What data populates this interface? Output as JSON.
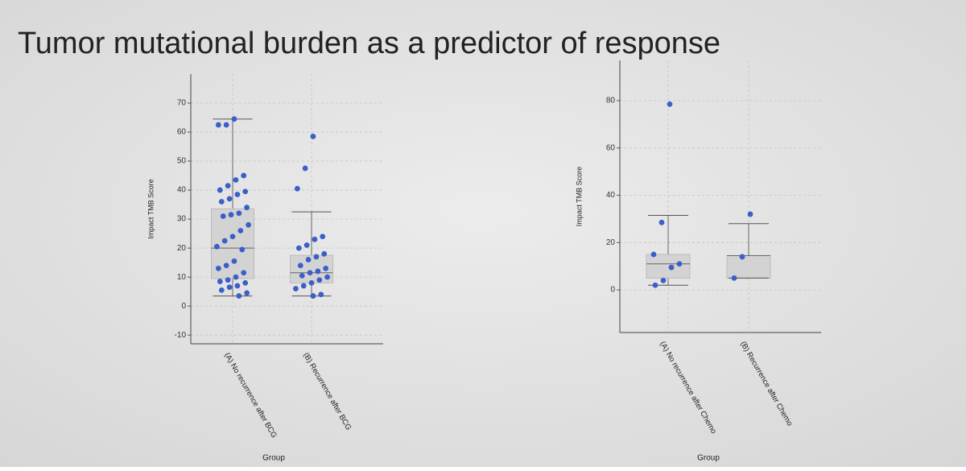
{
  "title": "Tumor mutational burden as a predictor of response",
  "chart_data": [
    {
      "type": "box",
      "y_label": "Impact TMB Score",
      "x_label": "Group",
      "categories": [
        "(A) No recurrence after BCG",
        "(B) Recurrence after BCG"
      ],
      "box_color": "#d3d3d3",
      "point_color": "#3b5fc9",
      "grid": true,
      "ylim": [
        -13,
        80
      ],
      "yticks": [
        -10,
        0,
        10,
        20,
        30,
        40,
        50,
        60,
        70
      ],
      "boxes": [
        {
          "whislo": 3.5,
          "q1": 9.5,
          "med": 20,
          "q3": 33.5,
          "whishi": 64.5,
          "points": [
            64.5,
            62.5,
            62.5,
            45,
            43.5,
            41.5,
            40,
            39.5,
            38.5,
            37,
            36,
            34,
            32,
            31.5,
            31,
            28,
            26,
            24,
            22.5,
            20.5,
            19.5,
            15.5,
            14,
            13,
            11.5,
            10,
            9,
            8.5,
            8,
            7,
            6.5,
            5.5,
            4.5,
            3.5
          ]
        },
        {
          "whislo": 3.5,
          "q1": 8,
          "med": 11.5,
          "q3": 17.5,
          "whishi": 32.5,
          "points": [
            58.5,
            47.5,
            40.5,
            24,
            23,
            21,
            20,
            18,
            17,
            16,
            14,
            13,
            12,
            11.5,
            10.5,
            10,
            9,
            8,
            7,
            6,
            4,
            3.5
          ]
        }
      ]
    },
    {
      "type": "box",
      "y_label": "Impact TMB Score",
      "x_label": "Group",
      "categories": [
        "(A) No recurrence after Chemo",
        "(B) Recurrence after Chemo"
      ],
      "box_color": "#d3d3d3",
      "point_color": "#3b5fc9",
      "grid": true,
      "ylim": [
        -18,
        97
      ],
      "yticks": [
        0,
        20,
        40,
        60,
        80
      ],
      "boxes": [
        {
          "whislo": 2,
          "q1": 5,
          "med": 11,
          "q3": 15,
          "whishi": 31.5,
          "points": [
            78.5,
            28.5,
            15,
            11,
            9.5,
            4,
            2
          ]
        },
        {
          "whislo": 5,
          "q1": 5,
          "med": 14.5,
          "q3": 14.5,
          "whishi": 28,
          "points": [
            32,
            14,
            5
          ]
        }
      ]
    }
  ]
}
